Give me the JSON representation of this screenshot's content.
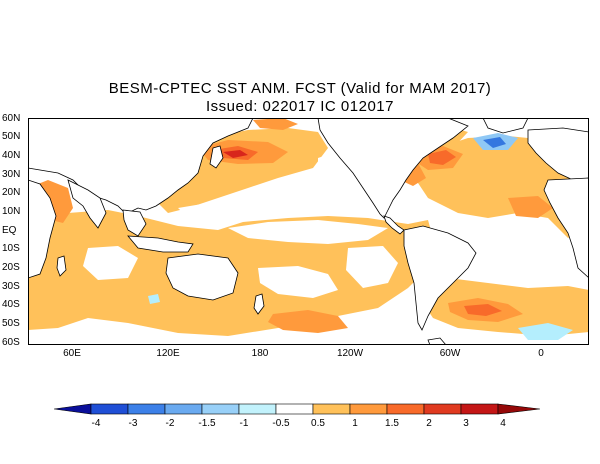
{
  "title": {
    "line1": "BESM-CPTEC SST ANM. FCST  (Valid for MAM 2017)",
    "line2": "Issued:  022017 IC 012017"
  },
  "map": {
    "lat_labels": [
      "60N",
      "50N",
      "40N",
      "30N",
      "20N",
      "10N",
      "EQ",
      "10S",
      "20S",
      "30S",
      "40S",
      "50S",
      "60S"
    ],
    "lon_labels": [
      "60E",
      "120E",
      "180",
      "120W",
      "60W",
      "0"
    ],
    "colors": {
      "land": "#ffffff",
      "ocean_neutral": "#ffffff",
      "warm_05_1": "#ffc15a",
      "warm_1_15": "#ff9a3c",
      "warm_15_2": "#f86a2a",
      "warm_2_3": "#d8251c",
      "warm_3_4": "#a80f0f",
      "cool_m05_m1": "#b4eefd",
      "cool_m1_m15": "#8fc8f5",
      "cool_m15_m2": "#5fa4ef",
      "cool_m2_m3": "#3477e0",
      "coast": "#000000"
    }
  },
  "colorbar": {
    "labels": [
      "-4",
      "-3",
      "-2",
      "-1.5",
      "-1",
      "-0.5",
      "0.5",
      "1",
      "1.5",
      "2",
      "3",
      "4"
    ],
    "colors": [
      "#0a0f9a",
      "#1f4fd6",
      "#3c80e8",
      "#6aaaf0",
      "#98d0f8",
      "#c2f2fc",
      "#ffffff",
      "#ffc15a",
      "#ff9a3c",
      "#f86a2a",
      "#e03a20",
      "#c41616",
      "#950808"
    ]
  }
}
